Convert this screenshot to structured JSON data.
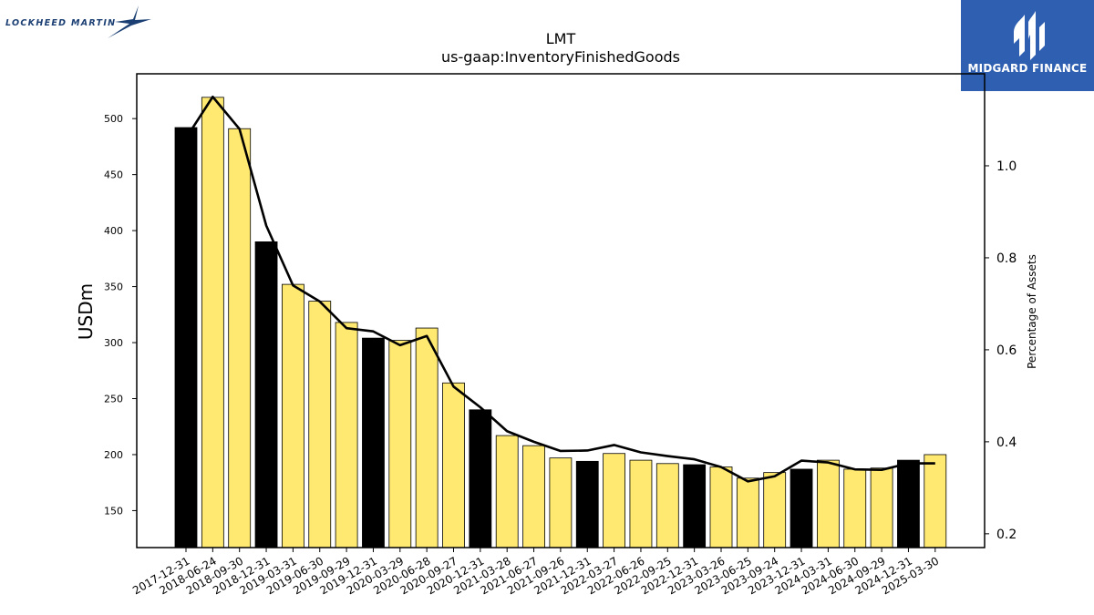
{
  "branding": {
    "left_logo_text": "LOCKHEED MARTIN",
    "right_logo_text": "MIDGARD FINANCE"
  },
  "chart_data": {
    "type": "bar",
    "title": "LMT",
    "subtitle": "us-gaap:InventoryFinishedGoods",
    "ylabel": "USDm",
    "y2label": "Percentage of Assets",
    "ylim": [
      117,
      540
    ],
    "y2lim": [
      0.17,
      1.2
    ],
    "yticks": [
      150,
      200,
      250,
      300,
      350,
      400,
      450,
      500
    ],
    "y2ticks": [
      0.2,
      0.4,
      0.6,
      0.8,
      1.0
    ],
    "y2tick_labels": [
      "0.2",
      "0.4",
      "0.6",
      "0.8",
      "1.0"
    ],
    "grid": false,
    "categories": [
      "2017-12-31",
      "2018-06-24",
      "2018-09-30",
      "2018-12-31",
      "2019-03-31",
      "2019-06-30",
      "2019-09-29",
      "2019-12-31",
      "2020-03-29",
      "2020-06-28",
      "2020-09-27",
      "2020-12-31",
      "2021-03-28",
      "2021-06-27",
      "2021-09-26",
      "2021-12-31",
      "2022-03-27",
      "2022-06-26",
      "2022-09-25",
      "2022-12-31",
      "2023-03-26",
      "2023-06-25",
      "2023-09-24",
      "2023-12-31",
      "2024-03-31",
      "2024-06-30",
      "2024-09-29",
      "2024-12-31",
      "2025-03-30"
    ],
    "series": [
      {
        "kind": "bar",
        "axis": "left",
        "values": [
          492,
          519,
          491,
          390,
          352,
          337,
          318,
          304,
          302,
          313,
          264,
          240,
          217,
          208,
          197,
          194,
          201,
          195,
          192,
          191,
          189,
          179,
          184,
          187,
          195,
          187,
          188,
          195,
          200
        ],
        "colors": [
          "#000000",
          "#ffe970",
          "#ffe970",
          "#000000",
          "#ffe970",
          "#ffe970",
          "#ffe970",
          "#000000",
          "#ffe970",
          "#ffe970",
          "#ffe970",
          "#000000",
          "#ffe970",
          "#ffe970",
          "#ffe970",
          "#000000",
          "#ffe970",
          "#ffe970",
          "#ffe970",
          "#000000",
          "#ffe970",
          "#ffe970",
          "#ffe970",
          "#000000",
          "#ffe970",
          "#ffe970",
          "#ffe970",
          "#000000",
          "#ffe970"
        ]
      },
      {
        "kind": "line",
        "axis": "right",
        "color": "#000000",
        "values": [
          1.06,
          1.15,
          1.08,
          0.87,
          0.74,
          0.705,
          0.647,
          0.64,
          0.61,
          0.63,
          0.52,
          0.475,
          0.423,
          0.4,
          0.38,
          0.381,
          0.393,
          0.377,
          0.369,
          0.362,
          0.345,
          0.314,
          0.325,
          0.359,
          0.355,
          0.34,
          0.339,
          0.353,
          0.353
        ]
      }
    ]
  }
}
